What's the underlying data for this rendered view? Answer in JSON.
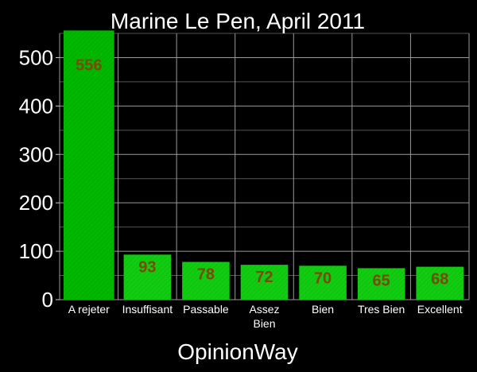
{
  "chart_data": {
    "type": "bar",
    "title": "Marine Le Pen, April 2011",
    "xlabel": "OpinionWay",
    "ylabel": "",
    "categories": [
      "A rejeter",
      "Insuffisant",
      "Passable",
      "Assez Bien",
      "Bien",
      "Tres Bien",
      "Excellent"
    ],
    "values": [
      556,
      93,
      78,
      72,
      70,
      65,
      68
    ],
    "yticks": [
      0,
      100,
      200,
      300,
      400,
      500
    ],
    "ylim": [
      0,
      550
    ],
    "grid": true,
    "colors": {
      "background": "#000000",
      "grid": "#888888",
      "bar": "#00b800",
      "bar_small": "#11cc11",
      "value_label": "#7a4a00",
      "text": "#ffffff"
    }
  }
}
